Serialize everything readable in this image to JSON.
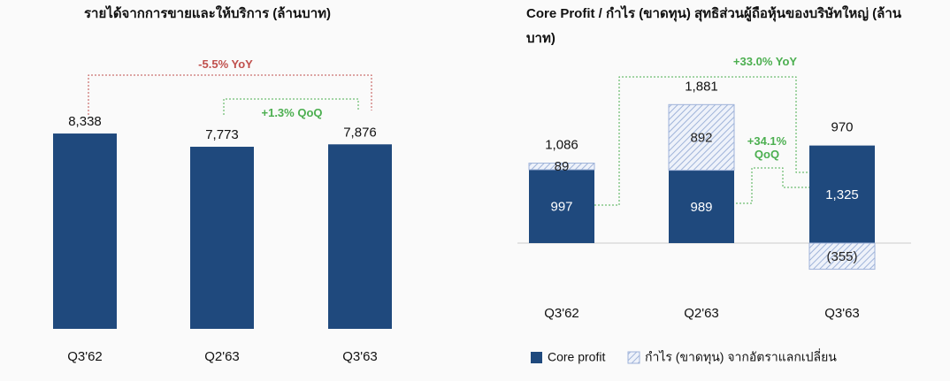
{
  "chart_data": [
    {
      "type": "bar",
      "title": "รายได้จากการขายและให้บริการ (ล้านบาท)",
      "categories": [
        "Q3'62",
        "Q2'63",
        "Q3'63"
      ],
      "values": [
        8338,
        7773,
        7876
      ],
      "value_labels": [
        "8,338",
        "7,773",
        "7,876"
      ],
      "color": "#1f497d",
      "annotations": [
        {
          "text": "-5.5% YoY",
          "color": "#c0504d"
        },
        {
          "text": "+1.3% QoQ",
          "color": "#4caf50"
        }
      ]
    },
    {
      "type": "stacked-bar",
      "title": "Core Profit / กำไร (ขาดทุน) สุทธิส่วนผู้ถือหุ้นของบริษัทใหญ่ (ล้านบาท)",
      "categories": [
        "Q3'62",
        "Q2'63",
        "Q3'63"
      ],
      "series": [
        {
          "name": "Core profit",
          "color": "#1f497d",
          "values": [
            997,
            989,
            1325
          ],
          "value_labels": [
            "997",
            "989",
            "1,325"
          ]
        },
        {
          "name": "กำไร (ขาดทุน) จากอัตราแลกเปลี่ยน",
          "color": "#9fb3d9",
          "hatched": true,
          "values": [
            89,
            892,
            -355
          ],
          "value_labels": [
            "89",
            "892",
            "(355)"
          ]
        }
      ],
      "totals": [
        1086,
        1881,
        970
      ],
      "total_labels": [
        "1,086",
        "1,881",
        "970"
      ],
      "annotations": [
        {
          "text": "+33.0% YoY",
          "color": "#4caf50"
        },
        {
          "text": "+34.1% QoQ",
          "color": "#4caf50"
        }
      ]
    }
  ]
}
